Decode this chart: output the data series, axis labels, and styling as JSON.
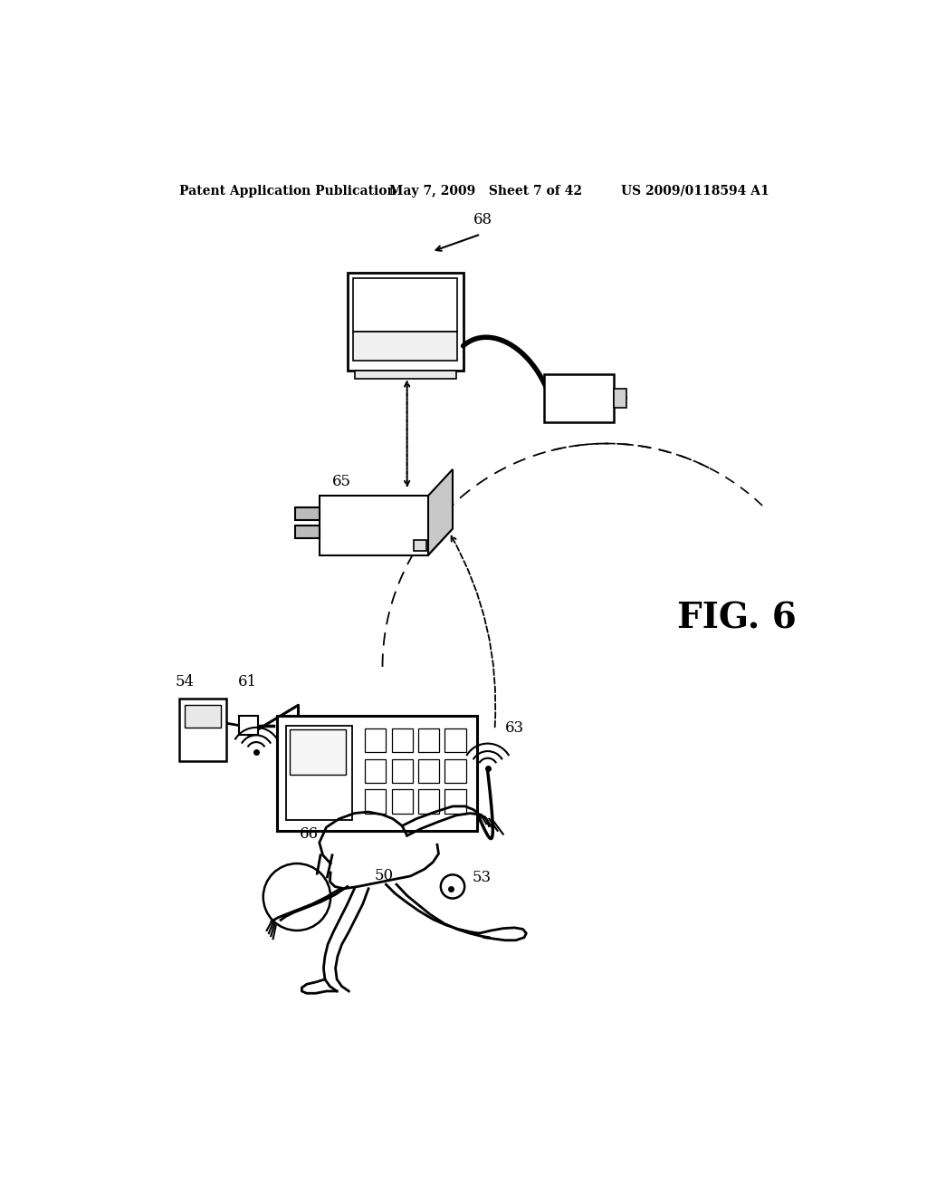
{
  "bg_color": "#ffffff",
  "header_left": "Patent Application Publication",
  "header_mid": "May 7, 2009   Sheet 7 of 42",
  "header_right": "US 2009/0118594 A1",
  "fig_label": "FIG. 6",
  "header_fontsize": 10,
  "label_fontsize": 12,
  "fig_label_fontsize": 28
}
